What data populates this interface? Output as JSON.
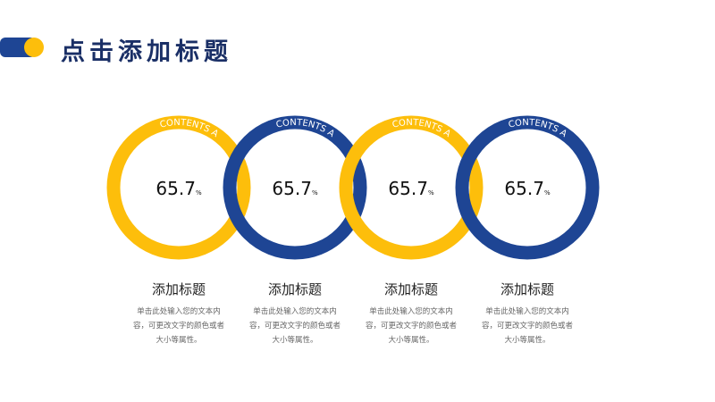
{
  "header": {
    "title": "点击添加标题"
  },
  "items": [
    {
      "ring_label": "CONTENTS A",
      "value": "65.7",
      "unit": "%",
      "heading": "添加标题",
      "body": "单击此处输入您的文本内容，可更改文字的颜色或者大小等属性。",
      "color": "#fdbe0b"
    },
    {
      "ring_label": "CONTENTS A",
      "value": "65.7",
      "unit": "%",
      "heading": "添加标题",
      "body": "单击此处输入您的文本内容，可更改文字的颜色或者大小等属性。",
      "color": "#1e4594"
    },
    {
      "ring_label": "CONTENTS A",
      "value": "65.7",
      "unit": "%",
      "heading": "添加标题",
      "body": "单击此处输入您的文本内容，可更改文字的颜色或者大小等属性。",
      "color": "#fdbe0b"
    },
    {
      "ring_label": "CONTENTS A",
      "value": "65.7",
      "unit": "%",
      "heading": "添加标题",
      "body": "单击此处输入您的文本内容，可更改文字的颜色或者大小等属性。",
      "color": "#1e4594"
    }
  ]
}
